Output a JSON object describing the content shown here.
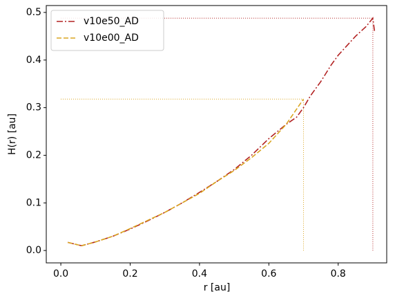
{
  "chart_data": {
    "type": "line",
    "xlabel": "r [au]",
    "ylabel": "H(r) [au]",
    "xlim": [
      -0.042,
      0.94
    ],
    "ylim": [
      -0.026,
      0.5145
    ],
    "xticks": [
      {
        "value": 0.0,
        "label": "0.0"
      },
      0.2,
      0.4,
      0.6,
      0.8
    ],
    "yticks": [
      {
        "value": 0.0,
        "label": "0.0"
      },
      0.1,
      0.2,
      0.3,
      0.4,
      0.5
    ],
    "legend": "upper left",
    "series": [
      {
        "name": "v10e50_AD",
        "color": "#b22222",
        "dash": "dashdot",
        "x": [
          0.02,
          0.06,
          0.1,
          0.15,
          0.2,
          0.25,
          0.3,
          0.35,
          0.4,
          0.45,
          0.5,
          0.55,
          0.6,
          0.65,
          0.68,
          0.7,
          0.72,
          0.75,
          0.78,
          0.8,
          0.85,
          0.88,
          0.9,
          0.905
        ],
        "values": [
          0.017,
          0.01,
          0.018,
          0.03,
          0.045,
          0.062,
          0.08,
          0.1,
          0.122,
          0.145,
          0.17,
          0.2,
          0.235,
          0.265,
          0.28,
          0.3,
          0.325,
          0.355,
          0.39,
          0.41,
          0.45,
          0.47,
          0.488,
          0.46
        ],
        "marker_line": {
          "x": 0.9,
          "y": 0.488
        }
      },
      {
        "name": "v10e00_AD",
        "color": "#daa520",
        "dash": "dashed",
        "x": [
          0.02,
          0.06,
          0.1,
          0.15,
          0.2,
          0.25,
          0.3,
          0.35,
          0.4,
          0.45,
          0.5,
          0.55,
          0.6,
          0.65,
          0.7
        ],
        "values": [
          0.017,
          0.01,
          0.018,
          0.03,
          0.046,
          0.063,
          0.08,
          0.1,
          0.12,
          0.145,
          0.168,
          0.195,
          0.225,
          0.265,
          0.318
        ],
        "marker_line": {
          "x": 0.7,
          "y": 0.318
        }
      }
    ]
  }
}
